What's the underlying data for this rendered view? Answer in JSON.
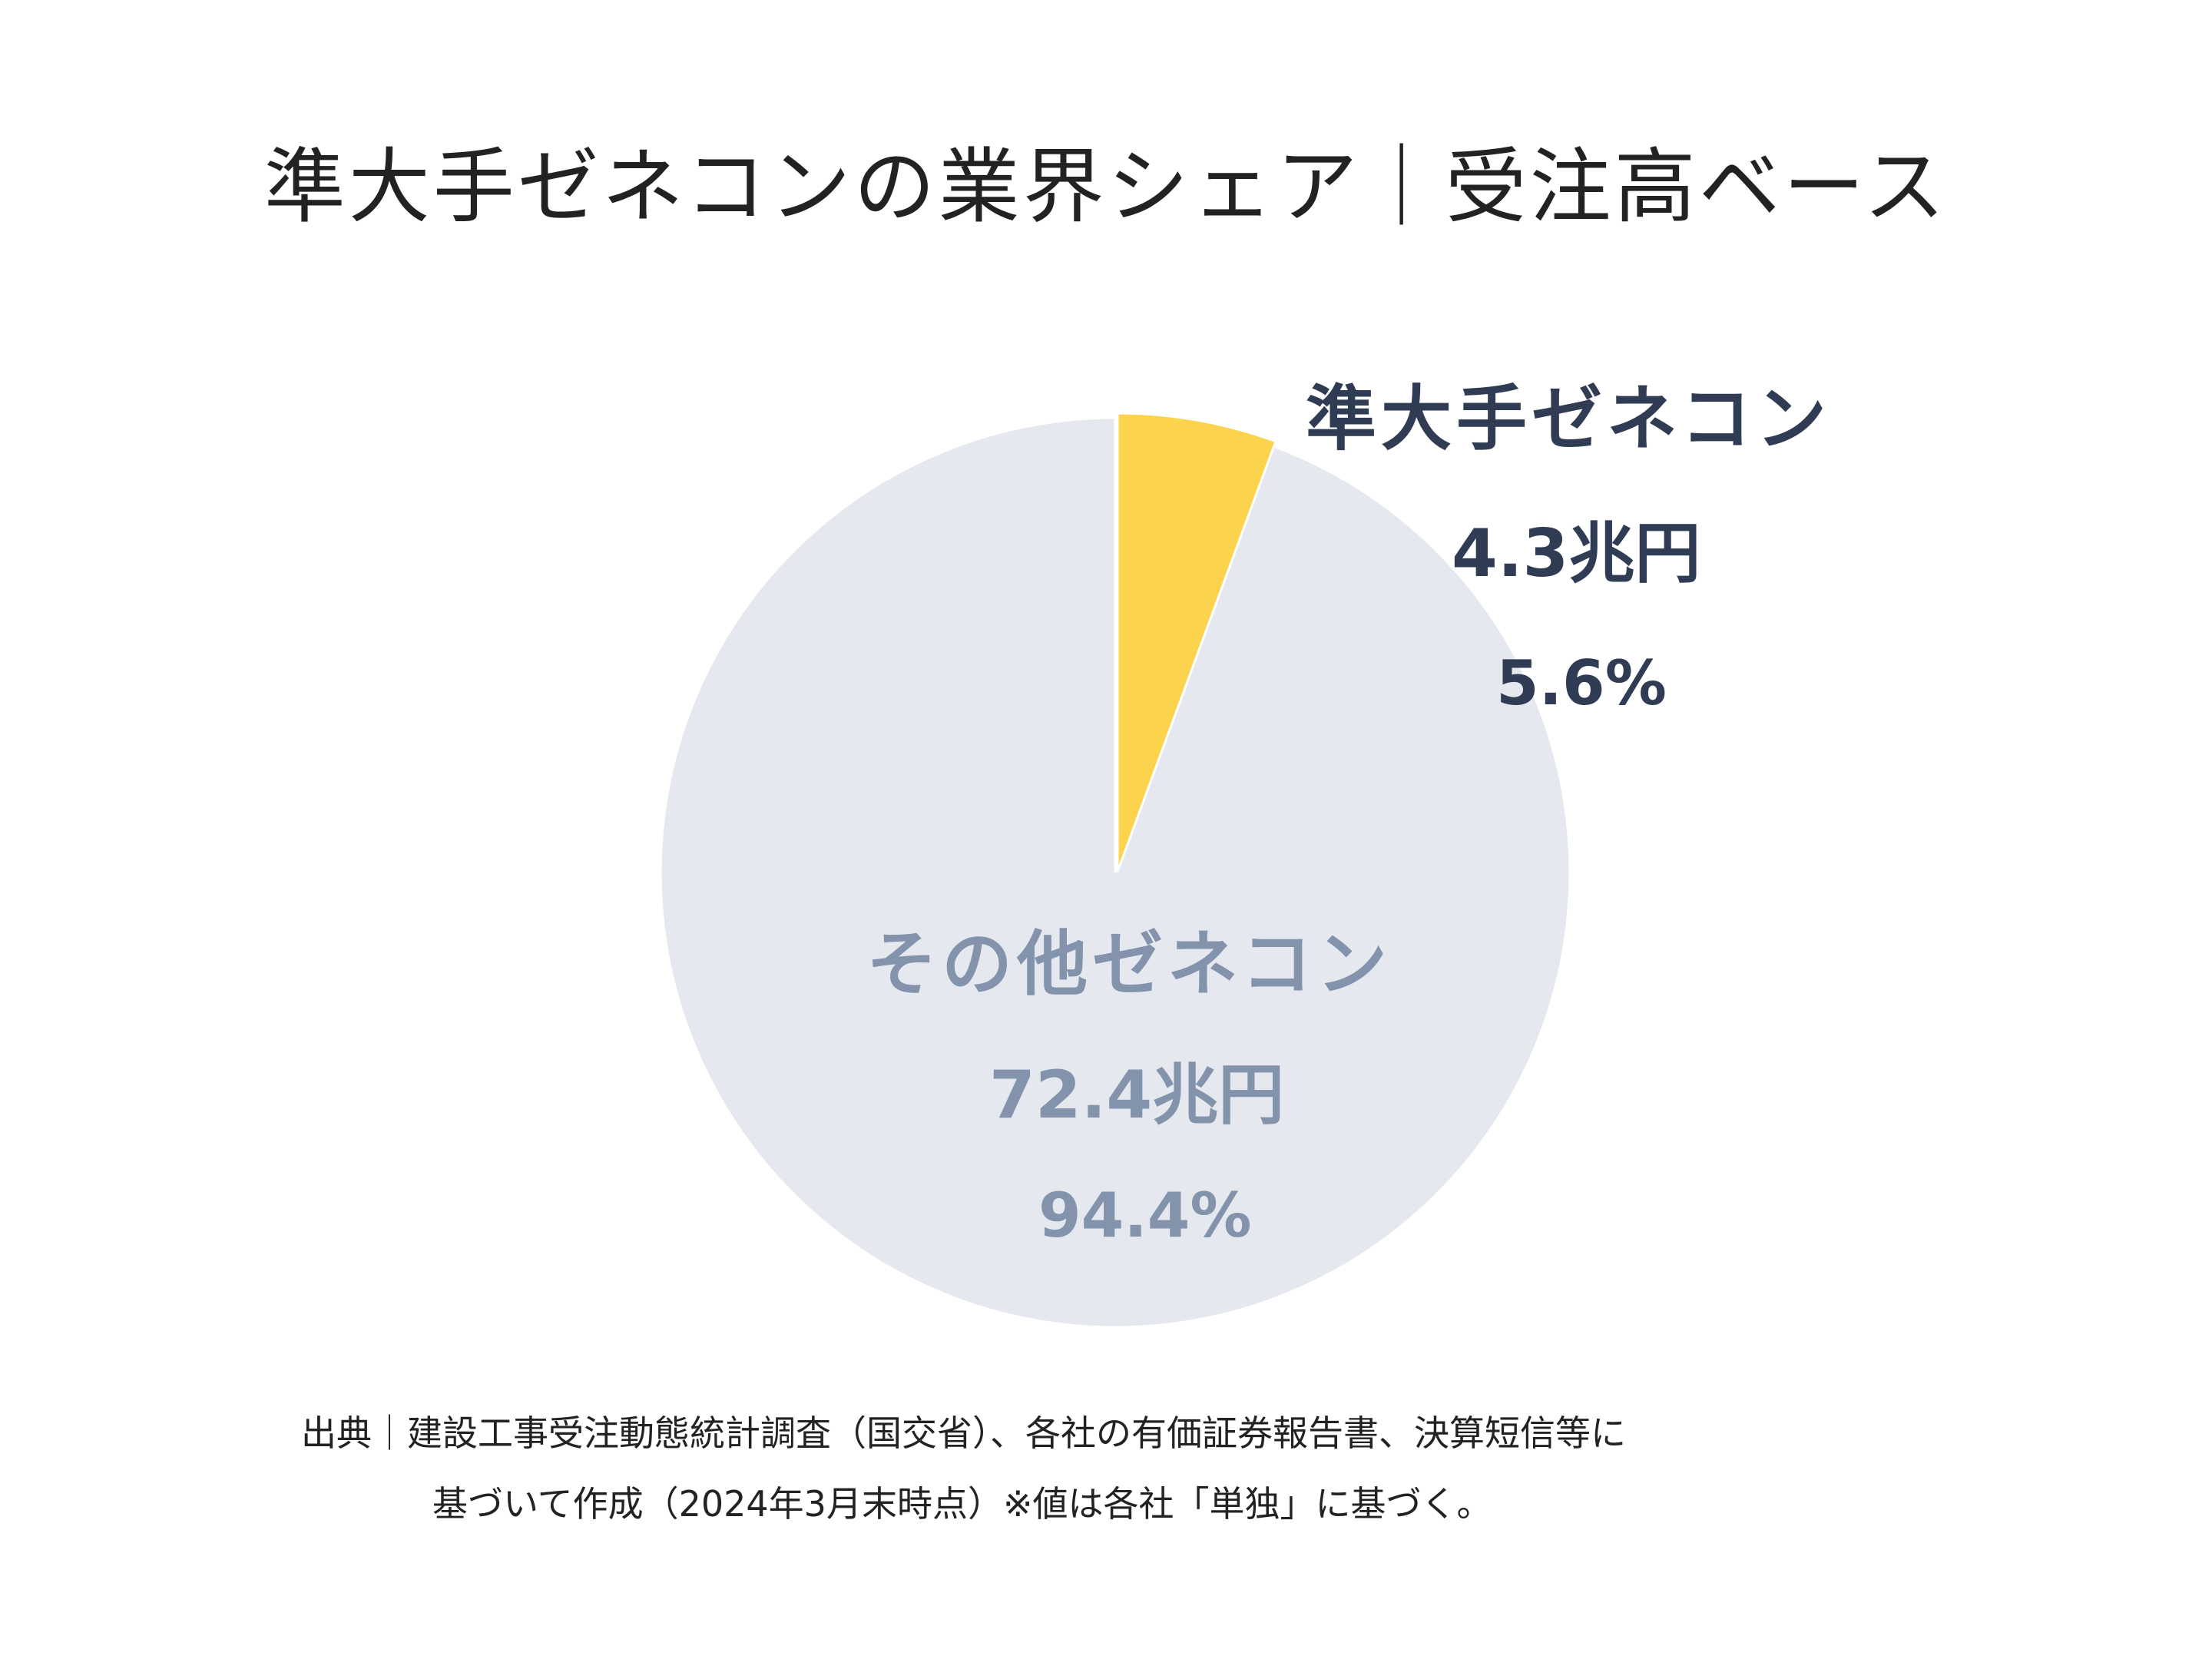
{
  "chart_data": {
    "type": "pie",
    "title": "準大手ゼネコンの業界シェア｜受注高ベース",
    "start_angle_deg": 0,
    "direction": "clockwise",
    "slices": [
      {
        "label": "準大手ゼネコン",
        "value_text": "4.3兆円",
        "value": 4.3,
        "unit": "兆円",
        "percent": 5.6,
        "percent_text": "5.6%",
        "color": "#fcd34d",
        "label_color": "#2f3c53"
      },
      {
        "label": "その他ゼネコン",
        "value_text": "72.4兆円",
        "value": 72.4,
        "unit": "兆円",
        "percent": 94.4,
        "percent_text": "94.4%",
        "color": "#e5e8ee",
        "label_color": "#8293ab"
      }
    ]
  },
  "source_note": {
    "line1": "出典｜建設工事受注動態統計調査（国交省）、各社の有価証券報告書、決算短信等に",
    "line2": "基づいて作成（2024年3月末時点）※値は各社「単独」に基づく。"
  }
}
